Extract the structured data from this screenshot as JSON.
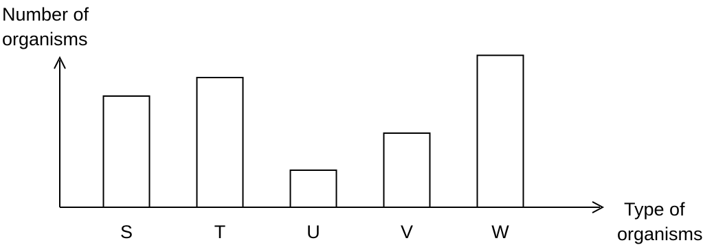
{
  "chart_data": {
    "type": "bar",
    "ylabel": [
      "Number of",
      "organisms"
    ],
    "xlabel": [
      "Type of",
      "organisms"
    ],
    "categories": [
      "S",
      "T",
      "U",
      "V",
      "W"
    ],
    "values": [
      6.0,
      7.0,
      2.0,
      4.0,
      8.2
    ],
    "ylim": [
      0,
      10
    ],
    "y_ticks": "none",
    "grid": false,
    "bar_fill": "#ffffff",
    "bar_stroke": "#000000",
    "axis_color": "#000000"
  }
}
